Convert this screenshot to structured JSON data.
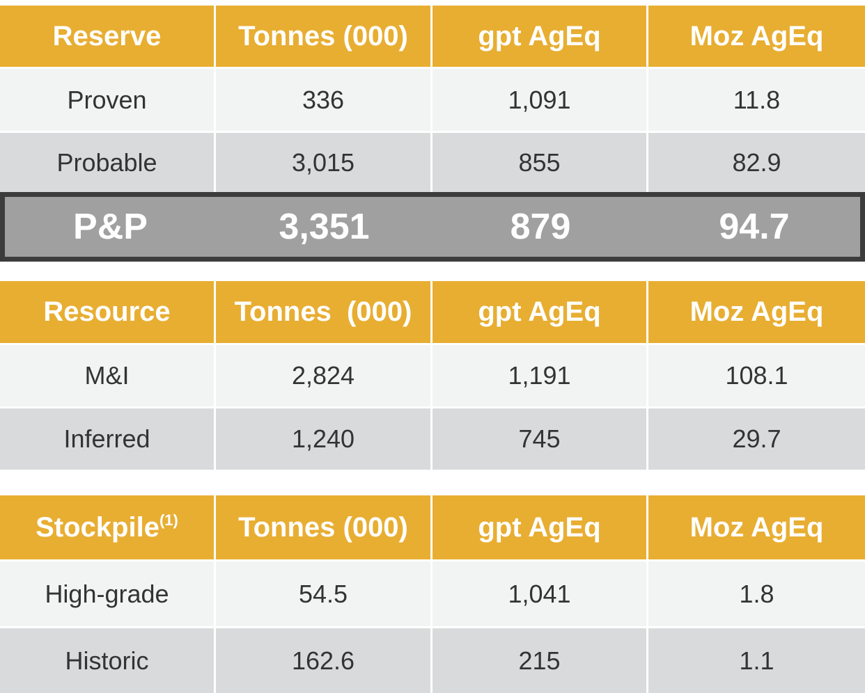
{
  "reserve_table": {
    "headers": [
      "Reserve",
      "Tonnes (000)",
      "gpt AgEq",
      "Moz AgEq"
    ],
    "rows": [
      [
        "Proven",
        "336",
        "1,091",
        "11.8"
      ],
      [
        "Probable",
        "3,015",
        "855",
        "82.9"
      ]
    ],
    "total": [
      "P&P",
      "3,351",
      "879",
      "94.7"
    ]
  },
  "resource_table": {
    "headers": [
      "Resource",
      "Tonnes  (000)",
      "gpt AgEq",
      "Moz AgEq"
    ],
    "rows": [
      [
        "M&I",
        "2,824",
        "1,191",
        "108.1"
      ],
      [
        "Inferred",
        "1,240",
        "745",
        "29.7"
      ]
    ]
  },
  "stockpile_table": {
    "headers": [
      "Stockpile",
      "Tonnes (000)",
      "gpt AgEq",
      "Moz AgEq"
    ],
    "header_footnote": "(1)",
    "rows": [
      [
        "High-grade",
        "54.5",
        "1,041",
        "1.8"
      ],
      [
        "Historic",
        "162.6",
        "215",
        "1.1"
      ]
    ]
  },
  "colors": {
    "header_gold": "#e8ae32",
    "row_light": "#f2f3f3",
    "row_dark": "#d9dadb",
    "total_gray": "#a0a0a0",
    "total_border": "#3c3c3c"
  }
}
